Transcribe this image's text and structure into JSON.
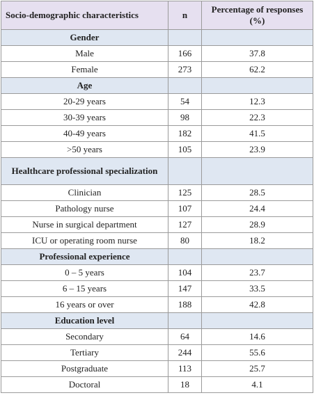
{
  "table": {
    "header": [
      "Socio-demographic characteristics",
      "n",
      "Percentage of responses (%)"
    ],
    "sections": [
      {
        "title": "Gender",
        "rows": [
          [
            "Male",
            166,
            37.8
          ],
          [
            "Female",
            273,
            62.2
          ]
        ]
      },
      {
        "title": "Age",
        "rows": [
          [
            "20-29 years",
            54,
            12.3
          ],
          [
            "30-39 years",
            98,
            22.3
          ],
          [
            "40-49 years",
            182,
            41.5
          ],
          [
            ">50 years",
            105,
            23.9
          ]
        ]
      },
      {
        "title": "Healthcare professional specialization",
        "rows": [
          [
            "Clinician",
            125,
            28.5
          ],
          [
            "Pathology nurse",
            107,
            24.4
          ],
          [
            "Nurse in surgical department",
            127,
            28.9
          ],
          [
            "ICU or operating room nurse",
            80,
            18.2
          ]
        ]
      },
      {
        "title": "Professional experience",
        "rows": [
          [
            "0 – 5 years",
            104,
            23.7
          ],
          [
            "6 – 15 years",
            147,
            33.5
          ],
          [
            "16 years or over",
            188,
            42.8
          ]
        ]
      },
      {
        "title": "Education level",
        "rows": [
          [
            "Secondary",
            64,
            14.6
          ],
          [
            "Tertiary",
            244,
            55.6
          ],
          [
            "Postgraduate",
            113,
            25.7
          ],
          [
            "Doctoral",
            18,
            4.1
          ]
        ]
      }
    ]
  }
}
